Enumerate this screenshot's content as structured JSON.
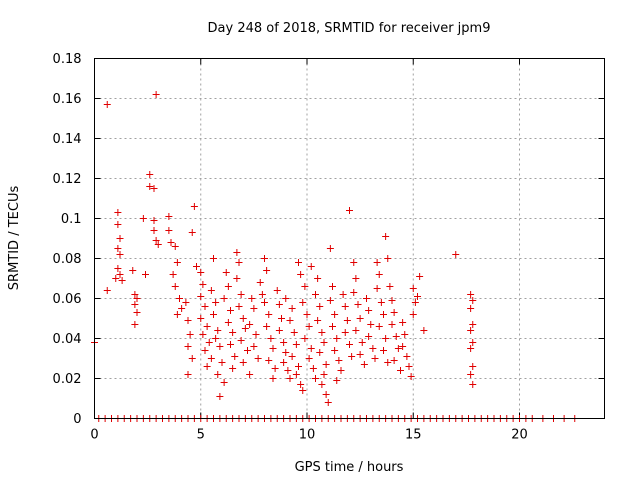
{
  "chart_data": {
    "type": "scatter",
    "title": "Day 248 of 2018, SRMTID for receiver jpm9",
    "xlabel": "GPS time / hours",
    "ylabel": "SRMTID / TECUs",
    "xlim": [
      0,
      24
    ],
    "ylim": [
      0,
      0.18
    ],
    "x_ticks": [
      0,
      5,
      10,
      15,
      20
    ],
    "y_ticks": [
      0,
      0.02,
      0.04,
      0.06,
      0.08,
      0.1,
      0.12,
      0.14,
      0.16,
      0.18
    ],
    "x_tick_labels": [
      "0",
      "5",
      "10",
      "15",
      "20"
    ],
    "y_tick_labels": [
      "0",
      "0.02",
      "0.04",
      "0.06",
      "0.08",
      "0.1",
      "0.12",
      "0.14",
      "0.16",
      "0.18"
    ],
    "grid": true,
    "marker": "+",
    "color": "#e00000",
    "series": [
      {
        "name": "SRMTID",
        "points": [
          [
            0.0,
            0.038
          ],
          [
            0.6,
            0.157
          ],
          [
            0.6,
            0.064
          ],
          [
            1.1,
            0.103
          ],
          [
            1.1,
            0.097
          ],
          [
            1.2,
            0.09
          ],
          [
            1.1,
            0.085
          ],
          [
            1.2,
            0.082
          ],
          [
            1.1,
            0.075
          ],
          [
            1.2,
            0.072
          ],
          [
            1.3,
            0.069
          ],
          [
            1.0,
            0.07
          ],
          [
            1.8,
            0.074
          ],
          [
            1.9,
            0.062
          ],
          [
            2.0,
            0.06
          ],
          [
            1.9,
            0.057
          ],
          [
            2.0,
            0.053
          ],
          [
            1.9,
            0.047
          ],
          [
            2.3,
            0.1
          ],
          [
            2.4,
            0.072
          ],
          [
            2.6,
            0.122
          ],
          [
            2.6,
            0.116
          ],
          [
            2.8,
            0.115
          ],
          [
            2.8,
            0.099
          ],
          [
            2.9,
            0.162
          ],
          [
            2.8,
            0.094
          ],
          [
            2.9,
            0.089
          ],
          [
            3.0,
            0.087
          ],
          [
            3.5,
            0.101
          ],
          [
            3.5,
            0.094
          ],
          [
            3.6,
            0.088
          ],
          [
            3.8,
            0.086
          ],
          [
            3.9,
            0.078
          ],
          [
            3.7,
            0.072
          ],
          [
            3.8,
            0.066
          ],
          [
            4.0,
            0.06
          ],
          [
            4.1,
            0.055
          ],
          [
            3.9,
            0.052
          ],
          [
            4.3,
            0.058
          ],
          [
            4.4,
            0.049
          ],
          [
            4.5,
            0.042
          ],
          [
            4.4,
            0.036
          ],
          [
            4.6,
            0.03
          ],
          [
            4.4,
            0.022
          ],
          [
            4.7,
            0.106
          ],
          [
            4.6,
            0.093
          ],
          [
            4.8,
            0.076
          ],
          [
            5.0,
            0.073
          ],
          [
            5.1,
            0.067
          ],
          [
            5.0,
            0.061
          ],
          [
            5.2,
            0.056
          ],
          [
            5.0,
            0.05
          ],
          [
            5.3,
            0.046
          ],
          [
            5.1,
            0.042
          ],
          [
            5.4,
            0.038
          ],
          [
            5.2,
            0.034
          ],
          [
            5.5,
            0.03
          ],
          [
            5.3,
            0.026
          ],
          [
            5.6,
            0.08
          ],
          [
            5.5,
            0.064
          ],
          [
            5.7,
            0.058
          ],
          [
            5.6,
            0.052
          ],
          [
            5.8,
            0.044
          ],
          [
            5.7,
            0.04
          ],
          [
            5.9,
            0.036
          ],
          [
            6.0,
            0.028
          ],
          [
            5.8,
            0.022
          ],
          [
            6.1,
            0.018
          ],
          [
            5.9,
            0.011
          ],
          [
            6.2,
            0.073
          ],
          [
            6.3,
            0.066
          ],
          [
            6.1,
            0.06
          ],
          [
            6.4,
            0.054
          ],
          [
            6.3,
            0.048
          ],
          [
            6.5,
            0.043
          ],
          [
            6.4,
            0.037
          ],
          [
            6.6,
            0.031
          ],
          [
            6.5,
            0.025
          ],
          [
            6.7,
            0.083
          ],
          [
            6.8,
            0.078
          ],
          [
            6.7,
            0.07
          ],
          [
            6.9,
            0.062
          ],
          [
            6.8,
            0.056
          ],
          [
            7.0,
            0.05
          ],
          [
            7.1,
            0.045
          ],
          [
            6.9,
            0.039
          ],
          [
            7.2,
            0.034
          ],
          [
            7.0,
            0.028
          ],
          [
            7.3,
            0.022
          ],
          [
            7.4,
            0.06
          ],
          [
            7.5,
            0.055
          ],
          [
            7.3,
            0.047
          ],
          [
            7.6,
            0.042
          ],
          [
            7.5,
            0.036
          ],
          [
            7.7,
            0.03
          ],
          [
            7.8,
            0.068
          ],
          [
            7.9,
            0.062
          ],
          [
            8.0,
            0.08
          ],
          [
            8.1,
            0.074
          ],
          [
            8.0,
            0.058
          ],
          [
            8.2,
            0.052
          ],
          [
            8.1,
            0.046
          ],
          [
            8.3,
            0.04
          ],
          [
            8.4,
            0.035
          ],
          [
            8.2,
            0.029
          ],
          [
            8.5,
            0.025
          ],
          [
            8.4,
            0.02
          ],
          [
            8.6,
            0.064
          ],
          [
            8.7,
            0.057
          ],
          [
            8.8,
            0.05
          ],
          [
            8.7,
            0.044
          ],
          [
            8.9,
            0.038
          ],
          [
            9.0,
            0.033
          ],
          [
            8.9,
            0.028
          ],
          [
            9.1,
            0.024
          ],
          [
            9.2,
            0.02
          ],
          [
            9.0,
            0.06
          ],
          [
            9.3,
            0.055
          ],
          [
            9.2,
            0.049
          ],
          [
            9.4,
            0.043
          ],
          [
            9.5,
            0.037
          ],
          [
            9.3,
            0.031
          ],
          [
            9.6,
            0.026
          ],
          [
            9.5,
            0.022
          ],
          [
            9.7,
            0.017
          ],
          [
            9.8,
            0.014
          ],
          [
            9.6,
            0.078
          ],
          [
            9.7,
            0.072
          ],
          [
            9.9,
            0.066
          ],
          [
            9.8,
            0.058
          ],
          [
            10.0,
            0.052
          ],
          [
            10.1,
            0.046
          ],
          [
            9.9,
            0.04
          ],
          [
            10.2,
            0.035
          ],
          [
            10.1,
            0.03
          ],
          [
            10.3,
            0.025
          ],
          [
            10.4,
            0.02
          ],
          [
            10.2,
            0.076
          ],
          [
            10.5,
            0.07
          ],
          [
            10.4,
            0.062
          ],
          [
            10.6,
            0.056
          ],
          [
            10.5,
            0.049
          ],
          [
            10.7,
            0.043
          ],
          [
            10.8,
            0.038
          ],
          [
            10.6,
            0.033
          ],
          [
            10.9,
            0.027
          ],
          [
            10.8,
            0.022
          ],
          [
            10.7,
            0.017
          ],
          [
            10.9,
            0.012
          ],
          [
            11.0,
            0.008
          ],
          [
            11.1,
            0.085
          ],
          [
            11.2,
            0.066
          ],
          [
            11.1,
            0.059
          ],
          [
            11.3,
            0.052
          ],
          [
            11.2,
            0.046
          ],
          [
            11.4,
            0.04
          ],
          [
            11.3,
            0.034
          ],
          [
            11.5,
            0.029
          ],
          [
            11.6,
            0.024
          ],
          [
            11.4,
            0.019
          ],
          [
            11.7,
            0.062
          ],
          [
            11.8,
            0.056
          ],
          [
            11.9,
            0.049
          ],
          [
            11.8,
            0.043
          ],
          [
            12.0,
            0.037
          ],
          [
            12.1,
            0.031
          ],
          [
            12.0,
            0.104
          ],
          [
            12.2,
            0.078
          ],
          [
            12.3,
            0.07
          ],
          [
            12.2,
            0.063
          ],
          [
            12.4,
            0.057
          ],
          [
            12.5,
            0.05
          ],
          [
            12.3,
            0.044
          ],
          [
            12.6,
            0.038
          ],
          [
            12.5,
            0.032
          ],
          [
            12.7,
            0.027
          ],
          [
            12.8,
            0.06
          ],
          [
            12.9,
            0.054
          ],
          [
            13.0,
            0.047
          ],
          [
            12.9,
            0.041
          ],
          [
            13.1,
            0.035
          ],
          [
            13.2,
            0.03
          ],
          [
            13.3,
            0.078
          ],
          [
            13.4,
            0.072
          ],
          [
            13.3,
            0.065
          ],
          [
            13.5,
            0.058
          ],
          [
            13.6,
            0.052
          ],
          [
            13.4,
            0.046
          ],
          [
            13.7,
            0.04
          ],
          [
            13.6,
            0.034
          ],
          [
            13.8,
            0.028
          ],
          [
            13.7,
            0.091
          ],
          [
            13.8,
            0.08
          ],
          [
            13.9,
            0.066
          ],
          [
            14.0,
            0.059
          ],
          [
            14.1,
            0.053
          ],
          [
            14.0,
            0.047
          ],
          [
            14.2,
            0.041
          ],
          [
            14.3,
            0.035
          ],
          [
            14.1,
            0.029
          ],
          [
            14.4,
            0.024
          ],
          [
            14.5,
            0.048
          ],
          [
            14.6,
            0.042
          ],
          [
            14.5,
            0.036
          ],
          [
            14.7,
            0.031
          ],
          [
            14.8,
            0.026
          ],
          [
            14.9,
            0.021
          ],
          [
            15.0,
            0.065
          ],
          [
            15.1,
            0.058
          ],
          [
            15.0,
            0.052
          ],
          [
            15.2,
            0.061
          ],
          [
            15.3,
            0.071
          ],
          [
            15.5,
            0.044
          ],
          [
            17.0,
            0.082
          ],
          [
            17.7,
            0.062
          ],
          [
            17.8,
            0.059
          ],
          [
            17.7,
            0.055
          ],
          [
            17.8,
            0.047
          ],
          [
            17.7,
            0.044
          ],
          [
            17.8,
            0.038
          ],
          [
            17.7,
            0.035
          ],
          [
            17.8,
            0.026
          ],
          [
            17.7,
            0.022
          ],
          [
            17.8,
            0.017
          ],
          [
            0.2,
            0
          ],
          [
            0.5,
            0
          ],
          [
            0.8,
            0
          ],
          [
            1.1,
            0
          ],
          [
            1.4,
            0
          ],
          [
            1.7,
            0
          ],
          [
            2.0,
            0
          ],
          [
            2.3,
            0
          ],
          [
            2.6,
            0
          ],
          [
            2.9,
            0
          ],
          [
            3.2,
            0
          ],
          [
            3.5,
            0
          ],
          [
            3.8,
            0
          ],
          [
            4.1,
            0
          ],
          [
            4.4,
            0
          ],
          [
            4.7,
            0
          ],
          [
            5.0,
            0
          ],
          [
            5.3,
            0
          ],
          [
            5.6,
            0
          ],
          [
            5.9,
            0
          ],
          [
            6.2,
            0
          ],
          [
            6.5,
            0
          ],
          [
            6.8,
            0
          ],
          [
            7.1,
            0
          ],
          [
            7.4,
            0
          ],
          [
            7.7,
            0
          ],
          [
            8.0,
            0
          ],
          [
            8.3,
            0
          ],
          [
            8.6,
            0
          ],
          [
            8.9,
            0
          ],
          [
            9.2,
            0
          ],
          [
            9.5,
            0
          ],
          [
            9.8,
            0
          ],
          [
            10.1,
            0
          ],
          [
            10.4,
            0
          ],
          [
            10.7,
            0
          ],
          [
            11.0,
            0
          ],
          [
            11.3,
            0
          ],
          [
            11.6,
            0
          ],
          [
            11.9,
            0
          ],
          [
            12.2,
            0
          ],
          [
            12.5,
            0
          ],
          [
            12.8,
            0
          ],
          [
            13.1,
            0
          ],
          [
            13.4,
            0
          ],
          [
            13.7,
            0
          ],
          [
            14.0,
            0
          ],
          [
            14.3,
            0
          ],
          [
            14.6,
            0
          ],
          [
            14.9,
            0
          ],
          [
            15.2,
            0
          ],
          [
            15.5,
            0
          ],
          [
            15.8,
            0
          ],
          [
            16.1,
            0
          ],
          [
            16.4,
            0
          ],
          [
            16.7,
            0
          ],
          [
            17.0,
            0
          ],
          [
            17.3,
            0
          ],
          [
            17.6,
            0
          ],
          [
            17.9,
            0
          ],
          [
            18.2,
            0
          ],
          [
            18.5,
            0
          ],
          [
            18.8,
            0
          ],
          [
            19.1,
            0
          ],
          [
            19.4,
            0
          ],
          [
            19.7,
            0
          ],
          [
            20.0,
            0
          ],
          [
            20.3,
            0
          ],
          [
            20.6,
            0
          ],
          [
            21.1,
            0
          ],
          [
            21.6,
            0
          ],
          [
            22.1,
            0
          ],
          [
            22.6,
            0
          ]
        ]
      }
    ]
  }
}
